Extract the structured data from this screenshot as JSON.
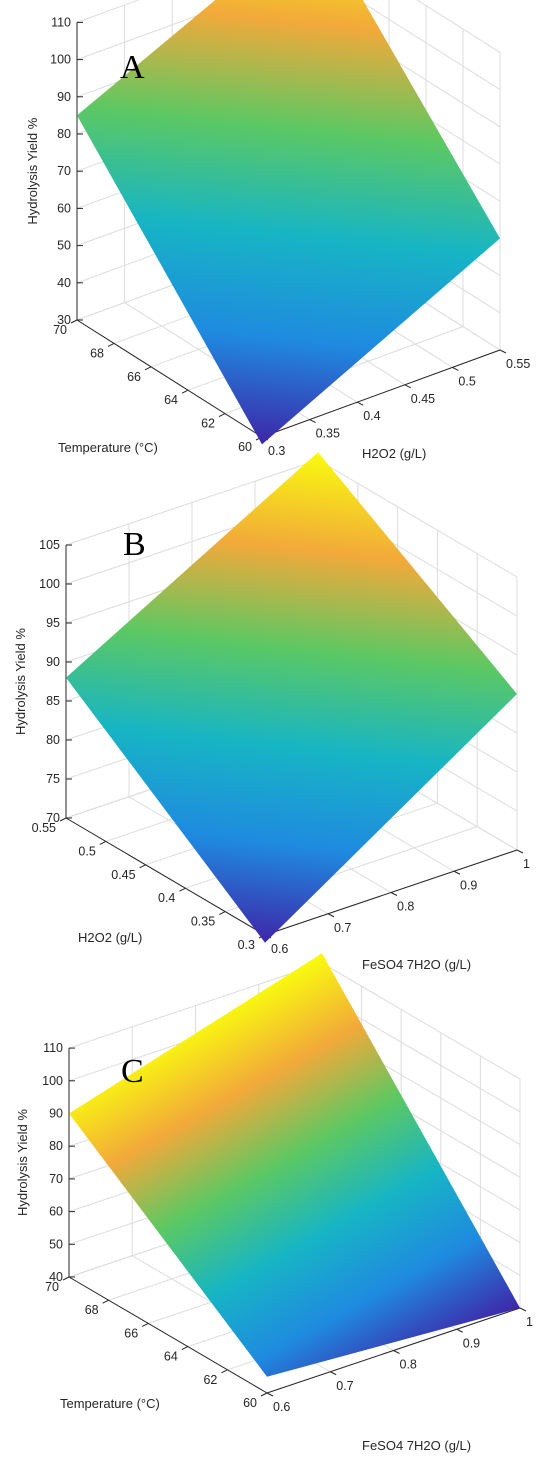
{
  "chart_data": [
    {
      "type": "surface",
      "panel_label": "A",
      "zlabel": "Hydrolysis Yield %",
      "zticks": [
        "30",
        "40",
        "50",
        "60",
        "70",
        "80",
        "90",
        "100",
        "110"
      ],
      "zlim": [
        30,
        110
      ],
      "left_axis": {
        "label": "Temperature (°C)",
        "ticks": [
          "70",
          "68",
          "66",
          "64",
          "62",
          "60"
        ],
        "range": [
          70,
          60
        ]
      },
      "right_axis": {
        "label": "H2O2 (g/L)",
        "ticks": [
          "0.3",
          "0.35",
          "0.4",
          "0.45",
          "0.5",
          "0.55"
        ],
        "range": [
          0.3,
          0.55
        ]
      },
      "surface_corners": [
        {
          "left": 70,
          "right": 0.3,
          "z": 85
        },
        {
          "left": 70,
          "right": 0.55,
          "z": 115
        },
        {
          "left": 60,
          "right": 0.55,
          "z": 60
        },
        {
          "left": 60,
          "right": 0.3,
          "z": 28
        }
      ],
      "colormap": [
        "#3e26a8",
        "#1f8ae0",
        "#17b5c4",
        "#5cc863",
        "#f2a93a",
        "#f9fb0e"
      ]
    },
    {
      "type": "surface",
      "panel_label": "B",
      "zlabel": "Hydrolysis Yield %",
      "zticks": [
        "70",
        "75",
        "80",
        "85",
        "90",
        "95",
        "100",
        "105"
      ],
      "zlim": [
        70,
        105
      ],
      "left_axis": {
        "label": "H2O2 (g/L)",
        "ticks": [
          "0.55",
          "0.5",
          "0.45",
          "0.4",
          "0.35",
          "0.3"
        ],
        "range": [
          0.55,
          0.3
        ]
      },
      "right_axis": {
        "label": "FeSO4 7H2O (g/L)",
        "ticks": [
          "0.6",
          "0.7",
          "0.8",
          "0.9",
          "1"
        ],
        "range": [
          0.6,
          1.0
        ]
      },
      "surface_corners": [
        {
          "left": 0.55,
          "right": 0.6,
          "z": 88
        },
        {
          "left": 0.55,
          "right": 1.0,
          "z": 106
        },
        {
          "left": 0.3,
          "right": 1.0,
          "z": 90
        },
        {
          "left": 0.3,
          "right": 0.6,
          "z": 69
        }
      ],
      "colormap": [
        "#3e26a8",
        "#1f8ae0",
        "#17b5c4",
        "#5cc863",
        "#f2a93a",
        "#f9fb0e"
      ]
    },
    {
      "type": "surface",
      "panel_label": "C",
      "zlabel": "Hydrolysis Yield %",
      "zticks": [
        "40",
        "50",
        "60",
        "70",
        "80",
        "90",
        "100",
        "110"
      ],
      "zlim": [
        40,
        110
      ],
      "left_axis": {
        "label": "Temperature (°C)",
        "ticks": [
          "70",
          "68",
          "66",
          "64",
          "62",
          "60"
        ],
        "range": [
          70,
          60
        ]
      },
      "right_axis": {
        "label": "FeSO4 7H2O (g/L)",
        "ticks": [
          "0.6",
          "0.7",
          "0.8",
          "0.9",
          "1"
        ],
        "range": [
          0.6,
          1.0
        ]
      },
      "surface_corners": [
        {
          "left": 70,
          "right": 0.6,
          "z": 90
        },
        {
          "left": 70,
          "right": 1.0,
          "z": 113
        },
        {
          "left": 60,
          "right": 1.0,
          "z": 40
        },
        {
          "left": 60,
          "right": 0.6,
          "z": 45
        }
      ],
      "colormap": [
        "#3e26a8",
        "#1f8ae0",
        "#17b5c4",
        "#5cc863",
        "#f2a93a",
        "#f9fb0e"
      ]
    }
  ]
}
